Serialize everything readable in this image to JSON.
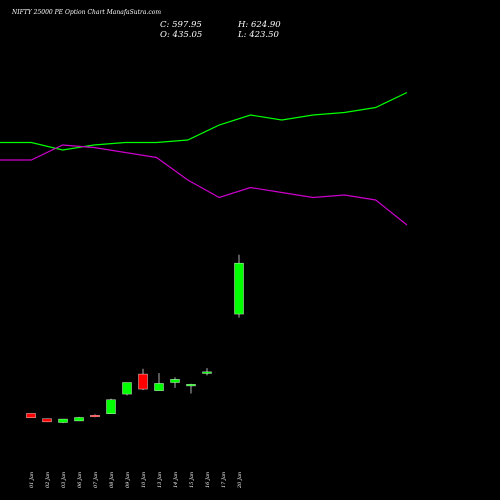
{
  "chart_data": {
    "type": "candlestick",
    "title": "NIFTY 25000 PE Option Chart ManafaSutra.com",
    "ohlc": {
      "close": "C: 597.95",
      "high": "H: 624.90",
      "open": "O: 435.05",
      "low": "L: 423.50"
    },
    "colors": {
      "up": "#00ff00",
      "down": "#ff0000",
      "line1": "#00ff00",
      "line2": "#cc00cc",
      "background": "#000000",
      "text": "#ffffff"
    },
    "categories": [
      "01 Jan",
      "02 Jan",
      "03 Jan",
      "06 Jan",
      "07 Jan",
      "08 Jan",
      "09 Jan",
      "10 Jan",
      "13 Jan",
      "14 Jan",
      "15 Jan",
      "16 Jan",
      "17 Jan",
      "20 Jan"
    ],
    "price_ylim": [
      0,
      800
    ],
    "candles": [
      {
        "o": 117,
        "h": 117,
        "l": 103,
        "c": 103
      },
      {
        "o": 100,
        "h": 100,
        "l": 90,
        "c": 90
      },
      {
        "o": 88,
        "h": 99,
        "l": 86,
        "c": 99
      },
      {
        "o": 93,
        "h": 106,
        "l": 93,
        "c": 104
      },
      {
        "o": 111,
        "h": 114,
        "l": 105,
        "c": 109
      },
      {
        "o": 116,
        "h": 164,
        "l": 116,
        "c": 161
      },
      {
        "o": 179,
        "h": 216,
        "l": 175,
        "c": 216
      },
      {
        "o": 243,
        "h": 260,
        "l": 192,
        "c": 195
      },
      {
        "o": 190,
        "h": 246,
        "l": 190,
        "c": 213
      },
      {
        "o": 216,
        "h": 233,
        "l": 199,
        "c": 226
      },
      {
        "o": 205,
        "h": 212,
        "l": 181,
        "c": 210
      },
      {
        "o": 245,
        "h": 262,
        "l": 239,
        "c": 250
      },
      {
        "o": 0,
        "h": 0,
        "l": 0,
        "c": 0
      },
      {
        "o": 435.05,
        "h": 624.9,
        "l": 423.5,
        "c": 597.95
      }
    ],
    "line_ylim": [
      0,
      100
    ],
    "series": [
      {
        "values": [
          59,
          59,
          56,
          58,
          59,
          59,
          60,
          66,
          70,
          68,
          70,
          71,
          73,
          79
        ]
      },
      {
        "values": [
          52,
          52,
          58,
          57,
          55,
          53,
          44,
          37,
          41,
          39,
          37,
          38,
          36,
          26
        ]
      }
    ]
  }
}
